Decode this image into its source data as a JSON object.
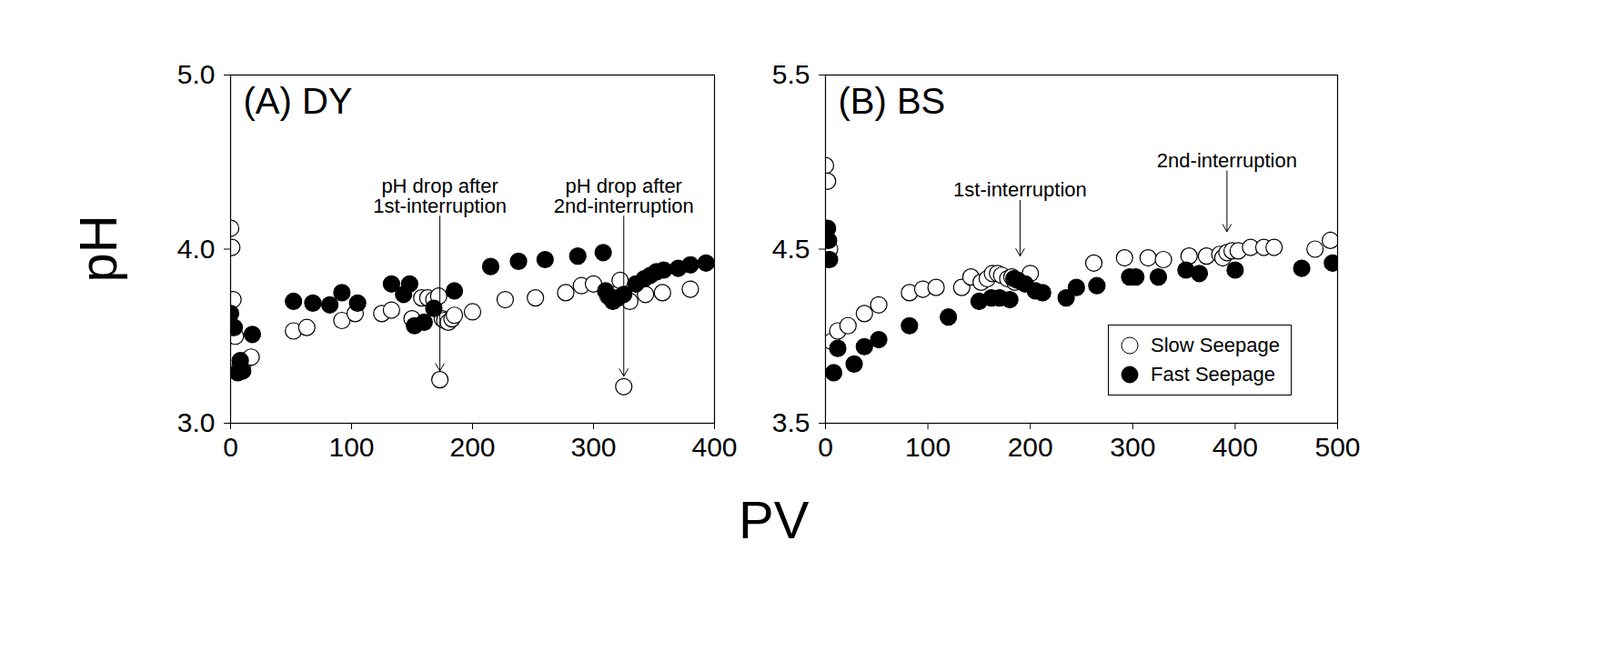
{
  "xlabel": "PV",
  "chart_data": [
    {
      "type": "scatter",
      "title": "(A) DY",
      "ylabel": "pH",
      "xlim": [
        0,
        400
      ],
      "xticks": [
        0,
        100,
        200,
        300,
        400
      ],
      "ylim": [
        3,
        5
      ],
      "yticks": [
        {
          "value": 3,
          "label": "3.0"
        },
        {
          "value": 4,
          "label": "4.0"
        },
        {
          "value": 5,
          "label": "5.0"
        }
      ],
      "grid": false,
      "annotations": [
        {
          "text": "pH drop after\n1st-interruption",
          "x": 173,
          "y_from": 4.19,
          "y_to": 3.3
        },
        {
          "text": "pH drop after\n2nd-interruption",
          "x": 325,
          "y_from": 4.19,
          "y_to": 3.27
        }
      ],
      "series": [
        {
          "name": "Slow Seepage",
          "color": "#000000",
          "marker": "open circle",
          "x": [
            0,
            1,
            2,
            4,
            8,
            12,
            17,
            52,
            63,
            92,
            103,
            125,
            133,
            150,
            158,
            163,
            168,
            172,
            175,
            177,
            180,
            183,
            185,
            173,
            200,
            227,
            252,
            277,
            290,
            300,
            312,
            318,
            322,
            325,
            330,
            325,
            343,
            357,
            380
          ],
          "values": [
            4.12,
            4.01,
            3.71,
            3.5,
            3.33,
            3.36,
            3.38,
            3.53,
            3.55,
            3.59,
            3.63,
            3.63,
            3.65,
            3.6,
            3.72,
            3.72,
            3.71,
            3.73,
            3.6,
            3.59,
            3.58,
            3.6,
            3.62,
            3.25,
            3.64,
            3.71,
            3.72,
            3.75,
            3.79,
            3.8,
            3.73,
            3.74,
            3.82,
            3.73,
            3.7,
            3.21,
            3.74,
            3.75,
            3.77
          ]
        },
        {
          "name": "Fast Seepage",
          "color": "#000000",
          "marker": "filled circle",
          "x": [
            0,
            3,
            6,
            8,
            10,
            18,
            52,
            68,
            82,
            92,
            105,
            133,
            143,
            148,
            152,
            160,
            168,
            185,
            215,
            238,
            260,
            287,
            308,
            310,
            313,
            316,
            320,
            325,
            335,
            342,
            347,
            352,
            358,
            370,
            380,
            393
          ],
          "values": [
            3.63,
            3.55,
            3.29,
            3.36,
            3.3,
            3.51,
            3.7,
            3.69,
            3.68,
            3.75,
            3.69,
            3.8,
            3.74,
            3.8,
            3.56,
            3.58,
            3.66,
            3.76,
            3.9,
            3.93,
            3.94,
            3.96,
            3.98,
            3.76,
            3.73,
            3.7,
            3.72,
            3.74,
            3.8,
            3.83,
            3.85,
            3.87,
            3.88,
            3.89,
            3.91,
            3.92
          ]
        }
      ]
    },
    {
      "type": "scatter",
      "title": "(B) BS",
      "legend": "bottom-right",
      "xlim": [
        0,
        500
      ],
      "xticks": [
        0,
        100,
        200,
        300,
        400,
        500
      ],
      "ylim": [
        3.5,
        5.5
      ],
      "yticks": [
        3.5,
        4.5,
        5.5
      ],
      "grid": false,
      "annotations": [
        {
          "text": "1st-interruption",
          "x": 190,
          "y_from": 4.78,
          "y_to": 4.46
        },
        {
          "text": "2nd-interruption",
          "x": 392,
          "y_from": 4.95,
          "y_to": 4.6
        }
      ],
      "series": [
        {
          "name": "Slow Seepage",
          "color": "#000000",
          "marker": "open circle",
          "x": [
            0,
            2,
            4,
            6,
            12,
            22,
            38,
            52,
            82,
            95,
            108,
            133,
            142,
            152,
            158,
            163,
            168,
            172,
            178,
            182,
            185,
            200,
            262,
            292,
            315,
            330,
            355,
            372,
            385,
            388,
            392,
            397,
            403,
            415,
            428,
            438,
            478,
            493
          ],
          "values": [
            4.98,
            4.89,
            4.5,
            3.97,
            4.03,
            4.06,
            4.13,
            4.18,
            4.25,
            4.27,
            4.28,
            4.28,
            4.34,
            4.31,
            4.33,
            4.36,
            4.36,
            4.35,
            4.33,
            4.34,
            4.31,
            4.36,
            4.42,
            4.45,
            4.45,
            4.44,
            4.46,
            4.46,
            4.47,
            4.45,
            4.48,
            4.49,
            4.49,
            4.51,
            4.51,
            4.51,
            4.5,
            4.55
          ]
        },
        {
          "name": "Fast Seepage",
          "color": "#000000",
          "marker": "filled circle",
          "x": [
            2,
            3,
            4,
            8,
            12,
            28,
            38,
            52,
            82,
            120,
            150,
            162,
            170,
            180,
            184,
            188,
            195,
            205,
            212,
            235,
            245,
            265,
            297,
            303,
            325,
            352,
            365,
            400,
            465,
            495
          ],
          "values": [
            4.62,
            4.55,
            4.44,
            3.79,
            3.93,
            3.84,
            3.94,
            3.98,
            4.06,
            4.11,
            4.2,
            4.22,
            4.22,
            4.21,
            4.33,
            4.32,
            4.3,
            4.26,
            4.25,
            4.22,
            4.28,
            4.29,
            4.34,
            4.34,
            4.34,
            4.38,
            4.36,
            4.38,
            4.39,
            4.42
          ]
        }
      ]
    }
  ]
}
